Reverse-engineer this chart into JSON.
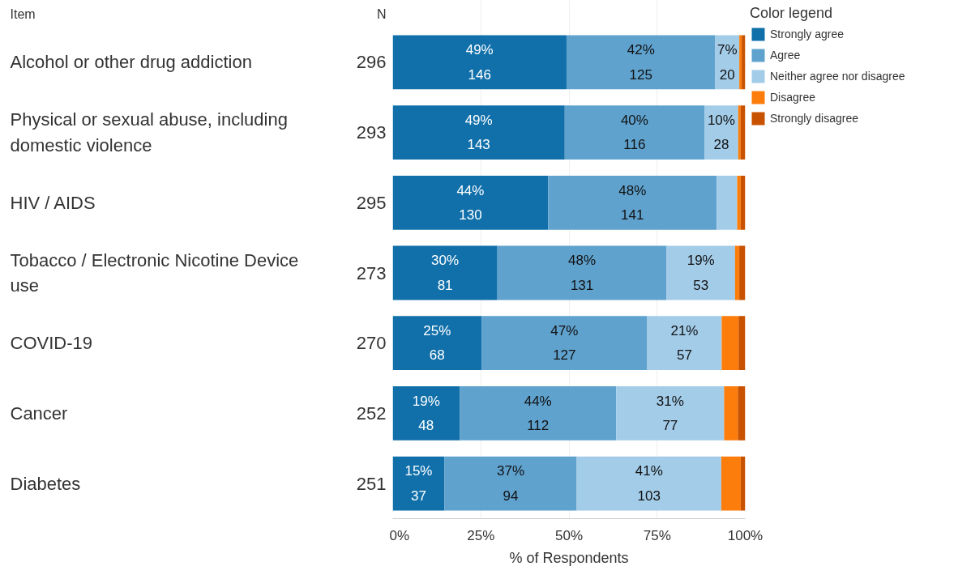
{
  "chart_data": {
    "type": "bar",
    "orientation": "horizontal",
    "stacked": true,
    "ylabel": "Item",
    "y2label": "N",
    "xlabel": "% of Respondents",
    "legend_title": "Color legend",
    "legend": "right",
    "grid": "x",
    "categories": [
      "Alcohol or other drug addiction",
      "Physical or sexual abuse, including domestic violence",
      "HIV / AIDS",
      "Tobacco / Electronic Nicotine Device use",
      "COVID-19",
      "Cancer",
      "Diabetes"
    ],
    "xlim": [
      0,
      100
    ],
    "xticks": [
      {
        "value": 0,
        "label": "0%"
      },
      {
        "value": 25,
        "label": "25%"
      },
      {
        "value": 50,
        "label": "50%"
      },
      {
        "value": 75,
        "label": "75%"
      },
      {
        "value": 100,
        "label": "100%"
      }
    ],
    "series": [
      {
        "name": "Strongly agree",
        "color": "#1170aa",
        "values": [
          49.3,
          48.8,
          44.1,
          29.7,
          25.2,
          19.0,
          14.7
        ],
        "value_labels": [
          "49%\n146",
          "49%\n143",
          "44%\n130",
          "30%\n81",
          "25%\n68",
          "19%\n48",
          "15%\n37"
        ]
      },
      {
        "name": "Agree",
        "color": "#5fa2ce",
        "values": [
          42.2,
          39.6,
          47.8,
          48.0,
          47.0,
          44.4,
          37.5
        ],
        "value_labels": [
          "42%\n125",
          "40%\n116",
          "48%\n141",
          "48%\n131",
          "47%\n127",
          "44%\n112",
          "37%\n94"
        ]
      },
      {
        "name": "Neither agree nor disagree",
        "color": "#a3cce9",
        "values": [
          6.8,
          9.6,
          5.8,
          19.4,
          21.1,
          30.6,
          41.0
        ],
        "value_labels": [
          "7%\n20",
          "10%\n28",
          null,
          "19%\n53",
          "21%\n57",
          "31%\n77",
          "41%\n103"
        ]
      },
      {
        "name": "Disagree",
        "color": "#fc7d0b",
        "values": [
          0.7,
          0.7,
          1.0,
          1.2,
          4.8,
          3.9,
          5.5
        ]
      },
      {
        "name": "Strongly disagree",
        "color": "#c85200",
        "values": [
          1.0,
          1.3,
          1.3,
          1.7,
          1.9,
          2.1,
          1.3
        ]
      }
    ],
    "annotations": [
      "296",
      "293",
      "295",
      "273",
      "270",
      "252",
      "251"
    ]
  }
}
